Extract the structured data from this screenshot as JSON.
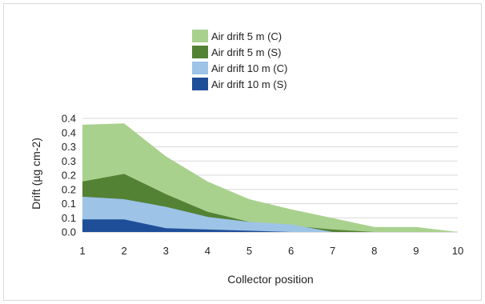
{
  "chart_data": {
    "type": "area",
    "x": [
      1,
      2,
      3,
      4,
      5,
      6,
      7,
      8,
      9,
      10
    ],
    "xlabel": "Collector position",
    "ylabel": "Drift (µg cm-2)",
    "ylim": [
      0,
      0.45
    ],
    "y_ticks": [
      "0.0",
      "0.1",
      "0.1",
      "0.2",
      "0.2",
      "0.3",
      "0.3",
      "0.4",
      "0.4"
    ],
    "x_ticks": [
      "1",
      "2",
      "3",
      "4",
      "5",
      "6",
      "7",
      "8",
      "9",
      "10"
    ],
    "grid": true,
    "legend_position": "top-center",
    "series": [
      {
        "name": "Air drift 5 m (C)",
        "color": "#a9d18e",
        "values": [
          0.425,
          0.43,
          0.3,
          0.2,
          0.13,
          0.09,
          0.055,
          0.02,
          0.02,
          0.0
        ]
      },
      {
        "name": "Air drift 5 m (S)",
        "color": "#548235",
        "values": [
          0.2,
          0.23,
          0.15,
          0.08,
          0.04,
          0.025,
          0.01,
          0.0,
          0.0,
          0.0
        ]
      },
      {
        "name": "Air drift 10 m (C)",
        "color": "#9dc3e6",
        "values": [
          0.14,
          0.13,
          0.1,
          0.06,
          0.04,
          0.03,
          0.0,
          0.0,
          0.0,
          0.0
        ]
      },
      {
        "name": "Air drift 10 m (S)",
        "color": "#1f4e99",
        "values": [
          0.05,
          0.05,
          0.015,
          0.01,
          0.005,
          0.0,
          0.0,
          0.0,
          0.0,
          0.0
        ]
      }
    ]
  }
}
